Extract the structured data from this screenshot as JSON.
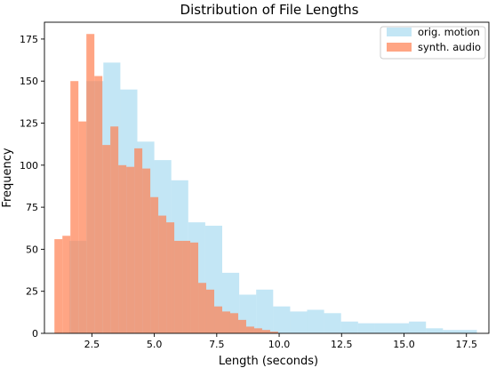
{
  "chart_data": {
    "type": "histogram",
    "title": "Distribution of File Lengths",
    "xlabel": "Length (seconds)",
    "ylabel": "Frequency",
    "xlim": [
      0.6,
      18.4
    ],
    "ylim": [
      0,
      185
    ],
    "xticks": [
      2.5,
      5.0,
      7.5,
      10.0,
      12.5,
      15.0,
      17.5
    ],
    "xtick_labels": [
      "2.5",
      "5.0",
      "7.5",
      "10.0",
      "12.5",
      "15.0",
      "17.5"
    ],
    "yticks": [
      0,
      25,
      50,
      75,
      100,
      125,
      150,
      175
    ],
    "ytick_labels": [
      "0",
      "25",
      "50",
      "75",
      "100",
      "125",
      "150",
      "175"
    ],
    "grid": false,
    "legend_position": "top-right",
    "series": [
      {
        "name": "orig. motion",
        "color": "#87CEEB",
        "opacity": 0.5,
        "bin_edges": [
          1.6,
          2.28,
          2.96,
          3.64,
          4.32,
          5.0,
          5.68,
          6.36,
          7.04,
          7.72,
          8.4,
          9.08,
          9.76,
          10.44,
          11.12,
          11.8,
          12.48,
          13.16,
          13.84,
          14.52,
          15.2,
          15.88,
          16.56,
          17.24,
          17.92
        ],
        "counts": [
          55,
          150,
          161,
          145,
          114,
          103,
          91,
          66,
          64,
          36,
          23,
          26,
          16,
          13,
          14,
          12,
          7,
          6,
          6,
          6,
          7,
          3,
          2,
          2
        ]
      },
      {
        "name": "synth. audio",
        "color": "#FF7F50",
        "opacity": 0.7,
        "bin_edges": [
          1.0,
          1.32,
          1.64,
          1.96,
          2.28,
          2.6,
          2.92,
          3.24,
          3.56,
          3.88,
          4.2,
          4.52,
          4.84,
          5.16,
          5.48,
          5.8,
          6.12,
          6.44,
          6.76,
          7.08,
          7.4,
          7.72,
          8.04,
          8.36,
          8.68,
          9.0,
          9.32,
          9.64,
          9.96
        ],
        "counts": [
          56,
          58,
          150,
          126,
          178,
          153,
          112,
          123,
          100,
          99,
          110,
          98,
          81,
          70,
          66,
          55,
          55,
          54,
          30,
          26,
          16,
          13,
          12,
          8,
          4,
          3,
          2,
          1
        ]
      }
    ]
  }
}
